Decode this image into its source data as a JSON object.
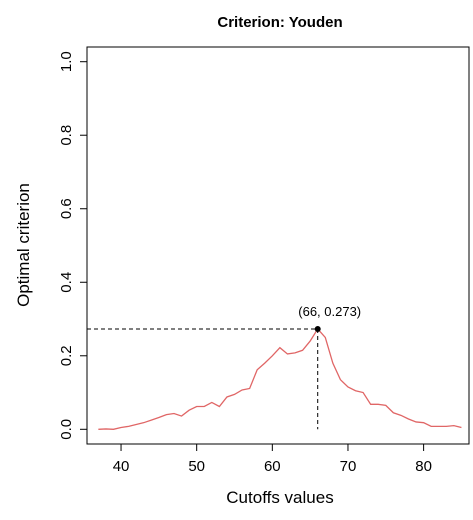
{
  "chart_data": {
    "type": "line",
    "title": "Criterion: Youden",
    "xlabel": "Cutoffs values",
    "ylabel": "Optimal criterion",
    "xlim": [
      35.5,
      86
    ],
    "ylim": [
      -0.04,
      1.04
    ],
    "x_ticks": [
      40,
      50,
      60,
      70,
      80
    ],
    "y_ticks": [
      0.0,
      0.2,
      0.4,
      0.6,
      0.8,
      1.0
    ],
    "x_tick_labels": [
      "40",
      "50",
      "60",
      "70",
      "80"
    ],
    "y_tick_labels": [
      "0.0",
      "0.2",
      "0.4",
      "0.6",
      "0.8",
      "1.0"
    ],
    "grid": false,
    "line_color": "#e06666",
    "series": [
      {
        "x": [
          37,
          38,
          39,
          40,
          41,
          42,
          43,
          44,
          45,
          46,
          47,
          48,
          49,
          50,
          51,
          52,
          53,
          54,
          55,
          56,
          57,
          58,
          59,
          60,
          61,
          62,
          63,
          64,
          65,
          66,
          67,
          68,
          69,
          70,
          71,
          72,
          73,
          74,
          75,
          76,
          77,
          78,
          79,
          80,
          81,
          82,
          83,
          84,
          85
        ],
        "y": [
          0.0,
          0.001,
          0.0,
          0.005,
          0.008,
          0.013,
          0.018,
          0.025,
          0.032,
          0.04,
          0.043,
          0.036,
          0.052,
          0.062,
          0.062,
          0.073,
          0.062,
          0.088,
          0.095,
          0.107,
          0.111,
          0.162,
          0.18,
          0.2,
          0.222,
          0.205,
          0.208,
          0.215,
          0.24,
          0.273,
          0.25,
          0.18,
          0.135,
          0.115,
          0.105,
          0.1,
          0.068,
          0.068,
          0.065,
          0.045,
          0.038,
          0.028,
          0.02,
          0.018,
          0.008,
          0.008,
          0.008,
          0.01,
          0.005
        ]
      }
    ],
    "optimal_point": {
      "x": 66,
      "y": 0.273,
      "label": "(66, 0.273)"
    }
  }
}
